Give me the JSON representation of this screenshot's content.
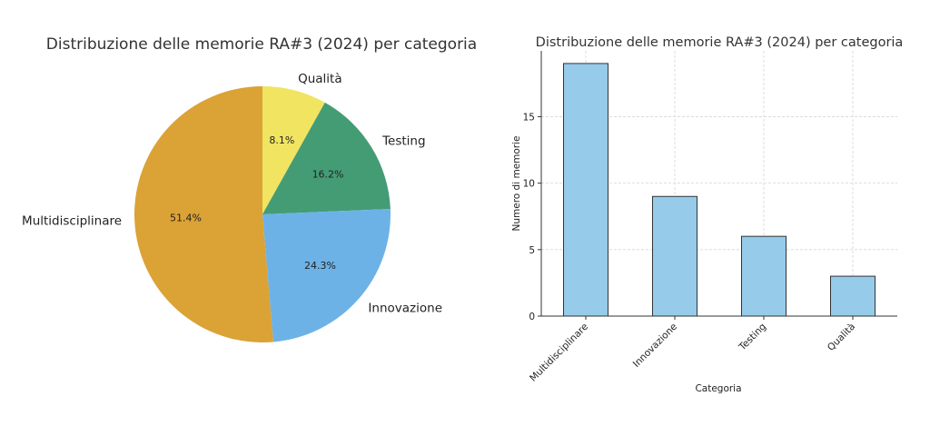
{
  "chart_data": [
    {
      "type": "pie",
      "title": "Distribuzione delle memorie RA#3 (2024) per categoria",
      "labels": [
        "Qualità",
        "Testing",
        "Innovazione",
        "Multidisciplinare"
      ],
      "values": [
        3,
        6,
        9,
        19
      ],
      "pct_labels": [
        "8.1%",
        "16.2%",
        "24.3%",
        "51.4%"
      ],
      "colors": [
        "#f0e461",
        "#449c75",
        "#6db2e6",
        "#dba236"
      ],
      "start_angle_deg": 90,
      "direction": "clockwise"
    },
    {
      "type": "bar",
      "title": "Distribuzione delle memorie RA#3 (2024) per categoria",
      "categories": [
        "Multidisciplinare",
        "Innovazione",
        "Testing",
        "Qualità"
      ],
      "values": [
        19,
        9,
        6,
        3
      ],
      "xlabel": "Categoria",
      "ylabel": "Numero di memorie",
      "ylim": [
        0,
        19.95
      ],
      "yticks": [
        0,
        5,
        10,
        15
      ],
      "grid": true,
      "bar_color": "#96cbea",
      "edge_color": "#333333"
    }
  ]
}
